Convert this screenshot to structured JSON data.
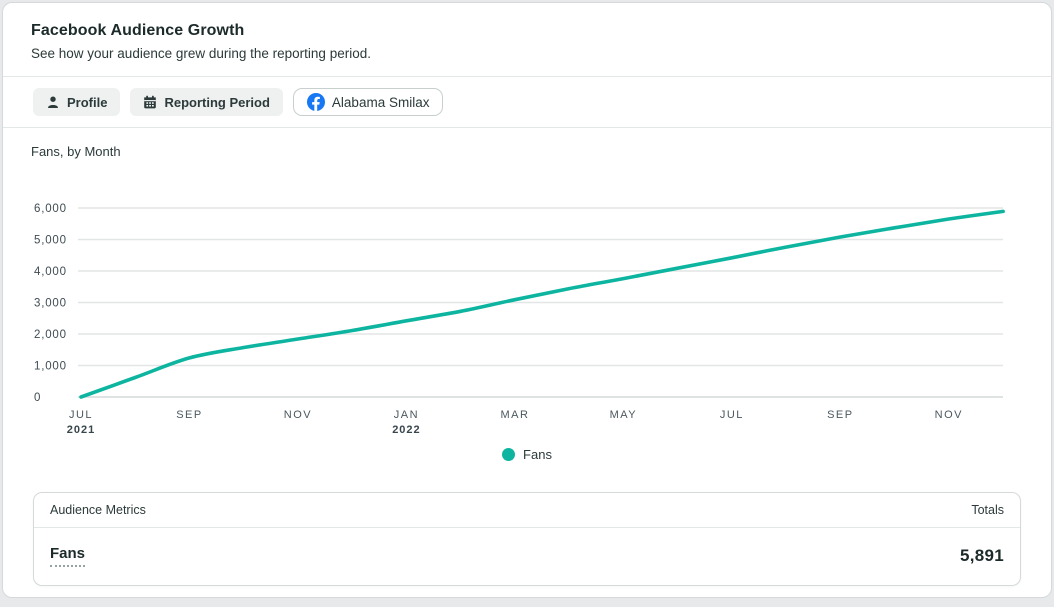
{
  "header": {
    "title": "Facebook Audience Growth",
    "subtitle": "See how your audience grew during the reporting period."
  },
  "filters": {
    "profile_label": "Profile",
    "reporting_period_label": "Reporting Period",
    "account_chip_label": "Alabama Smilax"
  },
  "chart": {
    "title": "Fans, by Month",
    "legend_label": "Fans"
  },
  "chart_data": {
    "type": "line",
    "title": "Fans, by Month",
    "series": [
      {
        "name": "Fans",
        "color": "#0db5a0",
        "values": [
          0,
          620,
          1240,
          1570,
          1840,
          2110,
          2420,
          2720,
          3090,
          3440,
          3760,
          4090,
          4420,
          4760,
          5080,
          5370,
          5650,
          5891
        ]
      }
    ],
    "x": [
      "Jul 2021",
      "Aug 2021",
      "Sep 2021",
      "Oct 2021",
      "Nov 2021",
      "Dec 2021",
      "Jan 2022",
      "Feb 2022",
      "Mar 2022",
      "Apr 2022",
      "May 2022",
      "Jun 2022",
      "Jul 2022",
      "Aug 2022",
      "Sep 2022",
      "Oct 2022",
      "Nov 2022",
      "Dec 2022"
    ],
    "xticks": [
      {
        "i": 0,
        "label": "JUL",
        "year": "2021"
      },
      {
        "i": 2,
        "label": "SEP"
      },
      {
        "i": 4,
        "label": "NOV"
      },
      {
        "i": 6,
        "label": "JAN",
        "year": "2022"
      },
      {
        "i": 8,
        "label": "MAR"
      },
      {
        "i": 10,
        "label": "MAY"
      },
      {
        "i": 12,
        "label": "JUL"
      },
      {
        "i": 14,
        "label": "SEP"
      },
      {
        "i": 16,
        "label": "NOV"
      }
    ],
    "yticks": [
      0,
      1000,
      2000,
      3000,
      4000,
      5000,
      6000
    ],
    "ylim": [
      0,
      6000
    ],
    "grid": true,
    "legend_position": "bottom"
  },
  "metrics_table": {
    "header_left": "Audience Metrics",
    "header_right": "Totals",
    "rows": [
      {
        "label": "Fans",
        "total": "5,891"
      }
    ]
  },
  "colors": {
    "accent_teal": "#0db5a0",
    "facebook_blue": "#1877f2",
    "gridline": "#e3e6e6",
    "zero_line": "#d6dada",
    "axis_month": "#4b585e",
    "axis_year": "#39454c"
  }
}
